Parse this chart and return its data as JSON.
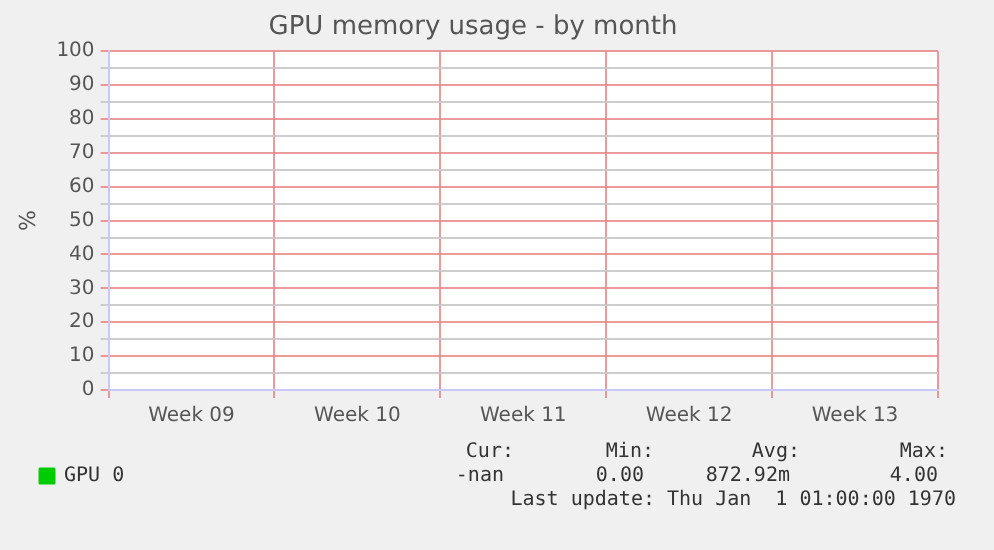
{
  "chart_data": {
    "type": "line",
    "title": "GPU memory usage - by month",
    "ylabel": "%",
    "categories": [
      "Week 09",
      "Week 10",
      "Week 11",
      "Week 12",
      "Week 13"
    ],
    "series": [
      {
        "name": "GPU 0",
        "color": "#00cc00",
        "values": [
          null,
          null,
          null,
          null,
          null
        ]
      }
    ],
    "ylim": [
      0,
      100
    ],
    "yticks": [
      0,
      {
        "value": 5,
        "label": null
      },
      10,
      {
        "value": 15,
        "label": null
      },
      20,
      {
        "value": 25,
        "label": null
      },
      30,
      {
        "value": 35,
        "label": null
      },
      40,
      {
        "value": 45,
        "label": null
      },
      50,
      {
        "value": 55,
        "label": null
      },
      60,
      {
        "value": 65,
        "label": null
      },
      70,
      {
        "value": 75,
        "label": null
      },
      80,
      {
        "value": 85,
        "label": null
      },
      90,
      {
        "value": 95,
        "label": null
      },
      100
    ],
    "grid": true,
    "legend": "bottom left",
    "annotations": [
      "Cur:",
      "Min:",
      "Avg:",
      "Max:",
      "-nan",
      "0.00",
      "872.92m",
      "4.00",
      "Last update: Thu Jan  1 01:00:00 1970"
    ]
  }
}
